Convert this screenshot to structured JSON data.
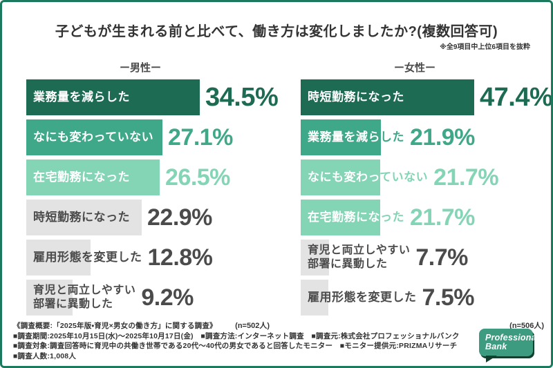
{
  "title": "子どもが生まれる前と比べて、働き方は変化しましたか?(複数回答可)",
  "note": "※全9項目中上位6項目を抜粋",
  "palette": {
    "frame_border": "#1A7A5E",
    "tones": {
      "dark": {
        "bar": "#1E6B53",
        "text": "#1E6B53"
      },
      "mid": {
        "bar": "#3FA888",
        "text": "#3FA888"
      },
      "light": {
        "bar": "#83D5B6",
        "text": "#83D5B6"
      },
      "gray": {
        "bar": "#E3E3E3",
        "text": "#4B4B4B"
      }
    },
    "label_on_green": "#FFFFFF",
    "gray_text": "#4B4B4B"
  },
  "chart_data": {
    "type": "bar",
    "orientation": "horizontal",
    "unit": "%",
    "title": "子どもが生まれる前と比べて、働き方は変化しましたか?(複数回答可)",
    "columns": [
      {
        "header": "ー男性ー",
        "n_label": "(n=502人)",
        "categories": [
          "業務量を減らした",
          "なにも変わっていない",
          "在宅勤務になった",
          "時短勤務になった",
          "雇用形態を変更した",
          "育児と両立しやすい部署に異動した"
        ],
        "rows": [
          {
            "label": "業務量を減らした",
            "value": 34.5,
            "display": "34.5%",
            "tone": "dark"
          },
          {
            "label": "なにも変わっていない",
            "value": 27.1,
            "display": "27.1%",
            "tone": "mid"
          },
          {
            "label": "在宅勤務になった",
            "value": 26.5,
            "display": "26.5%",
            "tone": "light"
          },
          {
            "label": "時短勤務になった",
            "value": 22.9,
            "display": "22.9%",
            "tone": "gray"
          },
          {
            "label": "雇用形態を変更した",
            "value": 12.8,
            "display": "12.8%",
            "tone": "gray"
          },
          {
            "label": "育児と両立しやすい\n部署に異動した",
            "value": 9.2,
            "display": "9.2%",
            "tone": "gray"
          }
        ]
      },
      {
        "header": "ー女性ー",
        "n_label": "(n=506人)",
        "categories": [
          "時短勤務になった",
          "業務量を減らした",
          "なにも変わっていない",
          "在宅勤務になった",
          "育児と両立しやすい部署に異動した",
          "雇用形態を変更した"
        ],
        "rows": [
          {
            "label": "時短勤務になった",
            "value": 47.4,
            "display": "47.4%",
            "tone": "dark"
          },
          {
            "label": "業務量を減らした",
            "value": 21.9,
            "display": "21.9%",
            "tone": "mid"
          },
          {
            "label": "なにも変わっていない",
            "value": 21.7,
            "display": "21.7%",
            "tone": "light"
          },
          {
            "label": "在宅勤務になった",
            "value": 21.7,
            "display": "21.7%",
            "tone": "light"
          },
          {
            "label": "育児と両立しやすい\n部署に異動した",
            "value": 7.7,
            "display": "7.7%",
            "tone": "gray"
          },
          {
            "label": "雇用形態を変更した",
            "value": 7.5,
            "display": "7.5%",
            "tone": "gray"
          }
        ]
      }
    ]
  },
  "footer": {
    "lines": [
      "《調査概要:「2025年版・育児×男女の働き方」に関する調査》",
      "■調査期間:2025年10月15日(水)〜2025年10月17日(金)　■調査方法:インターネット調査　■調査元:株式会社プロフェッショナルバンク",
      "■調査対象:調査回答時に育児中の共働き世帯である20代〜40代の男女であると回答したモニター　■モニター提供元:PRIZMAリサーチ",
      "■調査人数:1,008人"
    ]
  },
  "logo": {
    "line1": "Professional",
    "line2": "Bank"
  }
}
